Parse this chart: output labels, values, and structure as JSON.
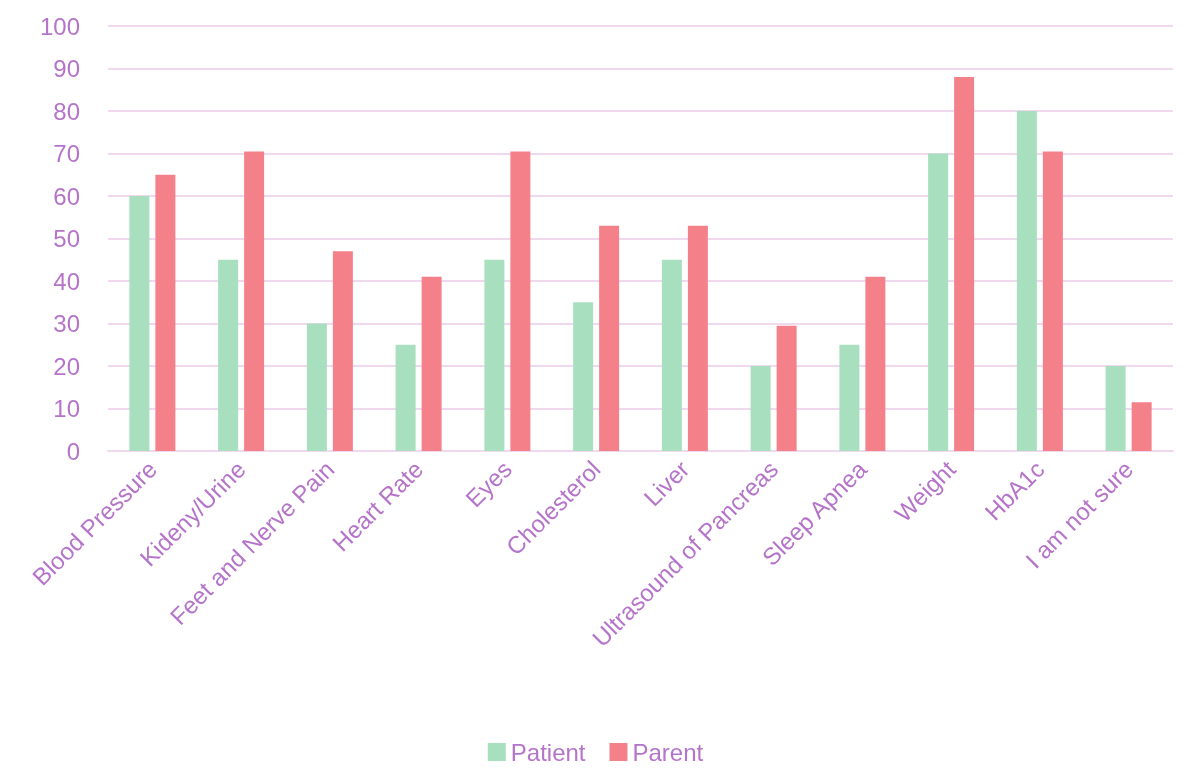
{
  "chart_data": {
    "type": "bar",
    "categories": [
      "Blood Pressure",
      "Kideny/Urine",
      "Feet and Nerve Pain",
      "Heart Rate",
      "Eyes",
      "Cholesterol",
      "Liver",
      "Ultrasound of Pancreas",
      "Sleep Apnea",
      "Weight",
      "HbA1c",
      "I am not sure"
    ],
    "series": [
      {
        "name": "Patient",
        "color": "#a8dfbf",
        "values": [
          60,
          45,
          30,
          25,
          45,
          35,
          45,
          20,
          25,
          70,
          80,
          20
        ]
      },
      {
        "name": "Parent",
        "color": "#f4808a",
        "values": [
          65,
          70.5,
          47,
          41,
          70.5,
          53,
          53,
          29.5,
          41,
          88,
          70.5,
          11.5
        ]
      }
    ],
    "ylim": [
      0,
      100
    ],
    "yticks": [
      0,
      10,
      20,
      30,
      40,
      50,
      60,
      70,
      80,
      90,
      100
    ],
    "grid": "y",
    "legend": "bottom"
  }
}
